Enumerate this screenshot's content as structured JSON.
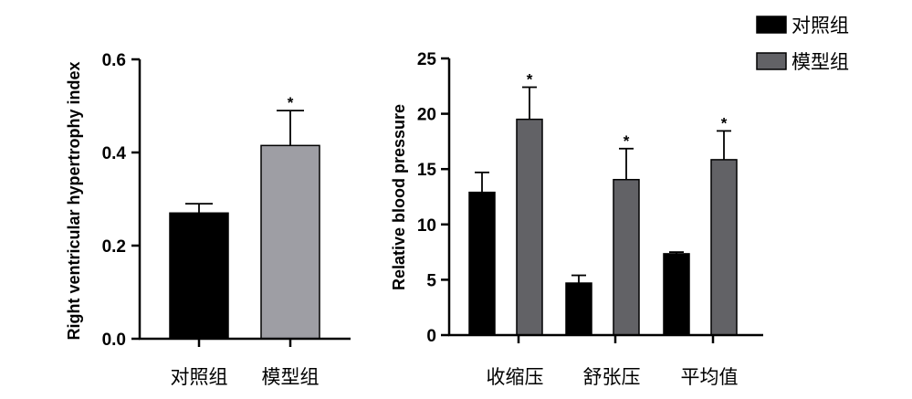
{
  "chart_data": [
    {
      "type": "bar",
      "ylabel": "Right ventricular hypertrophy index",
      "ylim": [
        0,
        0.6
      ],
      "yticks": [
        "0.0",
        "0.2",
        "0.4",
        "0.6"
      ],
      "ytick_values": [
        0,
        0.2,
        0.4,
        0.6
      ],
      "categories": [
        "对照组",
        "模型组"
      ],
      "values": [
        0.27,
        0.415
      ],
      "errors": [
        0.02,
        0.075
      ],
      "significance": [
        "",
        "*"
      ],
      "colors": [
        "#000000",
        "#9e9ea4"
      ]
    },
    {
      "type": "bar",
      "ylabel": "Relative  blood pressure",
      "ylim": [
        0,
        25
      ],
      "yticks": [
        "0",
        "5",
        "10",
        "15",
        "20",
        "25"
      ],
      "ytick_values": [
        0,
        5,
        10,
        15,
        20,
        25
      ],
      "categories": [
        "收缩压",
        "舒张压",
        "平均值"
      ],
      "legend": {
        "position": "top-right",
        "entries": [
          "对照组",
          "模型组"
        ]
      },
      "series": [
        {
          "name": "对照组",
          "color": "#000000",
          "values": [
            12.9,
            4.7,
            7.35
          ],
          "errors": [
            1.8,
            0.7,
            0.15
          ],
          "significance": [
            "",
            "",
            ""
          ]
        },
        {
          "name": "模型组",
          "color": "#626266",
          "values": [
            19.5,
            14.05,
            15.85
          ],
          "errors": [
            2.9,
            2.8,
            2.6
          ],
          "significance": [
            "*",
            "*",
            "*"
          ]
        }
      ]
    }
  ]
}
